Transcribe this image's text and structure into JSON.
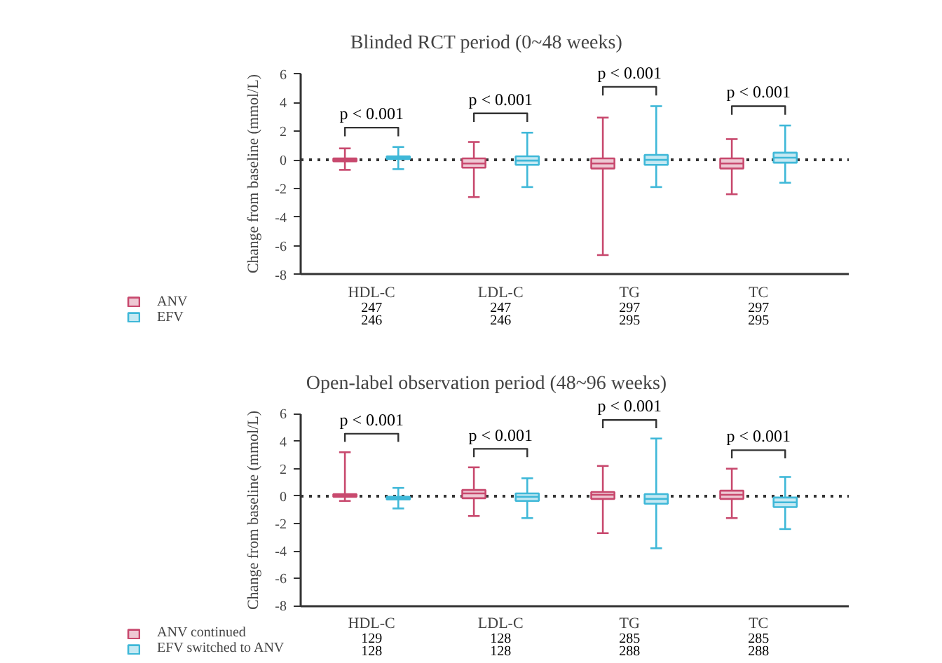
{
  "chart_data": [
    {
      "type": "box",
      "title": "Blinded RCT period (0~48 weeks)",
      "ylabel": "Change from baseline (mmol/L)",
      "categories": [
        "HDL-C",
        "LDL-C",
        "TG",
        "TC"
      ],
      "series": [
        {
          "name": "ANV",
          "color": "#c8496e",
          "boxes": [
            {
              "low": -0.7,
              "q1": -0.1,
              "median": 0.0,
              "q3": 0.1,
              "high": 0.8
            },
            {
              "low": -2.6,
              "q1": -0.55,
              "median": -0.25,
              "q3": 0.1,
              "high": 1.25
            },
            {
              "low": -6.65,
              "q1": -0.6,
              "median": -0.25,
              "q3": 0.1,
              "high": 2.95
            },
            {
              "low": -2.4,
              "q1": -0.6,
              "median": -0.25,
              "q3": 0.1,
              "high": 1.45
            }
          ]
        },
        {
          "name": "EFV",
          "color": "#3fb8d8",
          "boxes": [
            {
              "low": -0.65,
              "q1": 0.05,
              "median": 0.15,
              "q3": 0.25,
              "high": 0.9
            },
            {
              "low": -1.9,
              "q1": -0.35,
              "median": -0.05,
              "q3": 0.25,
              "high": 1.9
            },
            {
              "low": -1.9,
              "q1": -0.35,
              "median": 0.0,
              "q3": 0.35,
              "high": 3.75
            },
            {
              "low": -1.6,
              "q1": -0.2,
              "median": 0.15,
              "q3": 0.5,
              "high": 2.4
            }
          ]
        }
      ],
      "ylim": [
        -8,
        6
      ],
      "yticks": [
        -8,
        -6,
        -4,
        -2,
        0,
        2,
        4,
        6
      ],
      "ref_lines": [
        {
          "axis": "y",
          "value": 0,
          "label": null,
          "line_style": "dotted"
        }
      ],
      "annotations": [
        "p < 0.001",
        "p < 0.001",
        "p < 0.001",
        "p < 0.001",
        "247",
        "247",
        "297",
        "297",
        "246",
        "246",
        "295",
        "295"
      ],
      "legend": "bottom left",
      "grid": false
    },
    {
      "type": "box",
      "title": "Open-label observation period (48~96 weeks)",
      "ylabel": "Change from baseline (mmol/L)",
      "categories": [
        "HDL-C",
        "LDL-C",
        "TG",
        "TC"
      ],
      "series": [
        {
          "name": "ANV continued",
          "color": "#c8496e",
          "boxes": [
            {
              "low": -0.35,
              "q1": -0.05,
              "median": 0.05,
              "q3": 0.15,
              "high": 3.2
            },
            {
              "low": -1.45,
              "q1": -0.15,
              "median": 0.2,
              "q3": 0.45,
              "high": 2.1
            },
            {
              "low": -2.7,
              "q1": -0.2,
              "median": 0.1,
              "q3": 0.3,
              "high": 2.2
            },
            {
              "low": -1.6,
              "q1": -0.2,
              "median": 0.1,
              "q3": 0.4,
              "high": 2.0
            }
          ]
        },
        {
          "name": "EFV switched to ANV",
          "color": "#3fb8d8",
          "boxes": [
            {
              "low": -0.9,
              "q1": -0.25,
              "median": -0.15,
              "q3": -0.05,
              "high": 0.6
            },
            {
              "low": -1.6,
              "q1": -0.35,
              "median": -0.05,
              "q3": 0.2,
              "high": 1.3
            },
            {
              "low": -3.8,
              "q1": -0.55,
              "median": -0.2,
              "q3": 0.15,
              "high": 4.2
            },
            {
              "low": -2.4,
              "q1": -0.8,
              "median": -0.45,
              "q3": -0.1,
              "high": 1.4
            }
          ]
        }
      ],
      "ylim": [
        -8,
        6
      ],
      "yticks": [
        -8,
        -6,
        -4,
        -2,
        0,
        2,
        4,
        6
      ],
      "ref_lines": [
        {
          "axis": "y",
          "value": 0,
          "label": null,
          "line_style": "dotted"
        }
      ],
      "annotations": [
        "p < 0.001",
        "p < 0.001",
        "p < 0.001",
        "p < 0.001",
        "129",
        "128",
        "285",
        "285",
        "128",
        "128",
        "288",
        "288"
      ],
      "legend": "bottom left",
      "grid": false
    }
  ]
}
